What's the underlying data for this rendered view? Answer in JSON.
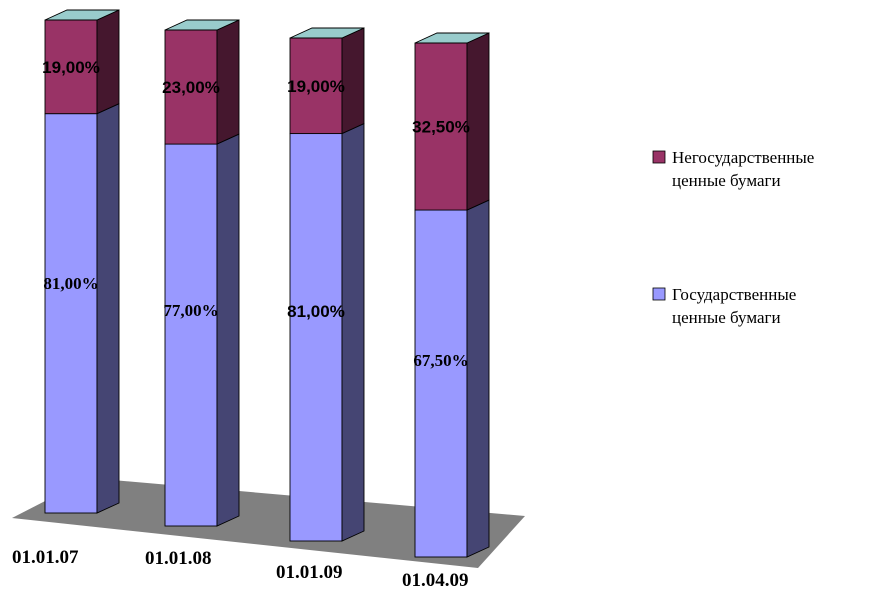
{
  "chart_data": {
    "type": "bar",
    "stacked": true,
    "percent_stacked": true,
    "three_d": true,
    "categories": [
      "01.01.07",
      "01.01.08",
      "01.01.09",
      "01.04.09"
    ],
    "series": [
      {
        "name": "Государственные ценные бумаги",
        "values": [
          81.0,
          77.0,
          81.0,
          67.5
        ],
        "labels": [
          "81,00%",
          "77,00%",
          "81,00%",
          "67,50%"
        ],
        "color": "#9999ff"
      },
      {
        "name": "Негосударственные ценные бумаги",
        "values": [
          19.0,
          23.0,
          19.0,
          32.5
        ],
        "labels": [
          "19,00%",
          "23,00%",
          "19,00%",
          "32,50%"
        ],
        "color": "#993366"
      }
    ],
    "ylim": [
      0,
      100
    ],
    "legend": "right",
    "grid": false,
    "colors": {
      "floor": "#808080",
      "bar_top": "#99cccc"
    }
  }
}
